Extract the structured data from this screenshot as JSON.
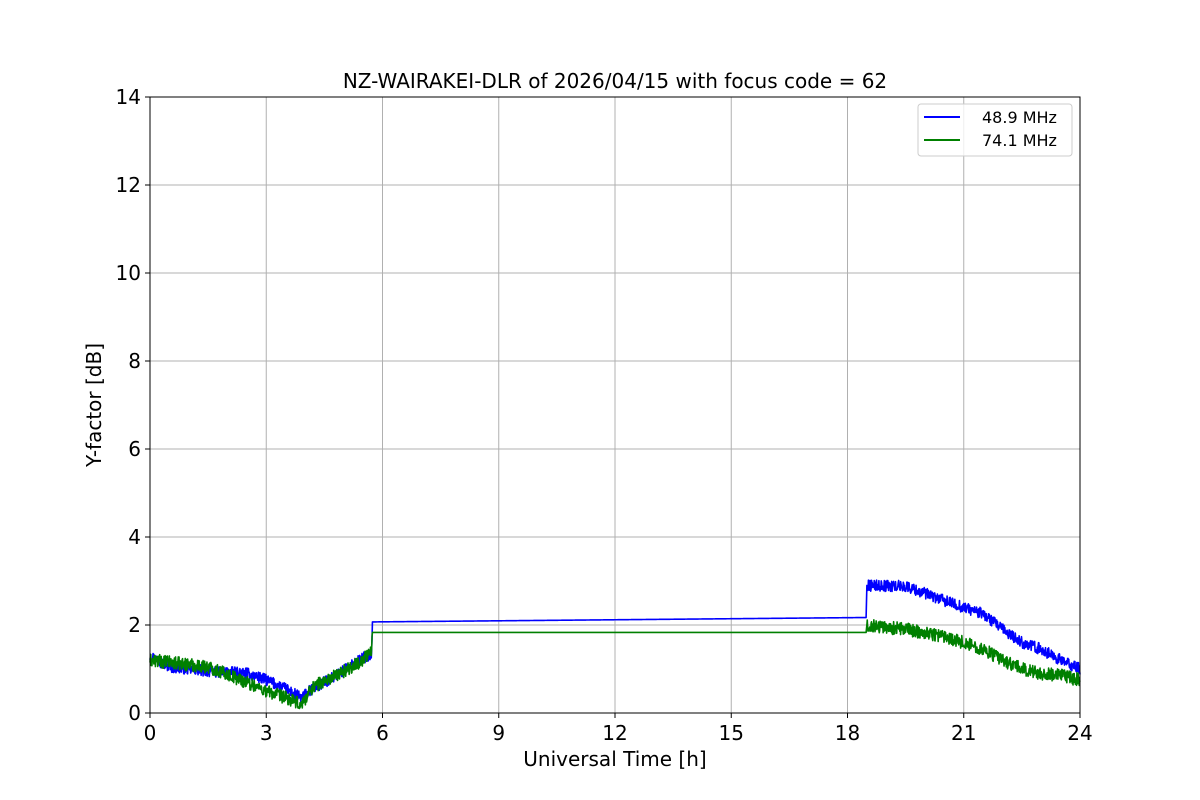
{
  "chart_data": {
    "type": "line",
    "title": "NZ-WAIRAKEI-DLR of 2026/04/15 with focus code = 62",
    "xlabel": "Universal Time [h]",
    "ylabel": "Y-factor [dB]",
    "xlim": [
      0,
      24
    ],
    "ylim": [
      0,
      14
    ],
    "xticks": [
      0,
      3,
      6,
      9,
      12,
      15,
      18,
      21,
      24
    ],
    "yticks": [
      0,
      2,
      4,
      6,
      8,
      10,
      12,
      14
    ],
    "xtick_labels": [
      "0",
      "3",
      "6",
      "9",
      "12",
      "15",
      "18",
      "21",
      "24"
    ],
    "ytick_labels": [
      "0",
      "2",
      "4",
      "6",
      "8",
      "10",
      "12",
      "14"
    ],
    "grid": true,
    "legend_position": "top-right",
    "series": [
      {
        "name": "48.9 MHz",
        "color": "#0000ff",
        "noise": 0.13,
        "points": [
          [
            0,
            1.3
          ],
          [
            0.5,
            1.05
          ],
          [
            1.5,
            0.95
          ],
          [
            2.5,
            0.9
          ],
          [
            3.0,
            0.75
          ],
          [
            3.5,
            0.55
          ],
          [
            3.9,
            0.35
          ],
          [
            4.2,
            0.55
          ],
          [
            4.8,
            0.85
          ],
          [
            5.4,
            1.2
          ],
          [
            5.72,
            1.35
          ],
          [
            5.74,
            2.07
          ],
          [
            18.48,
            2.17
          ],
          [
            18.5,
            2.9
          ],
          [
            19.5,
            2.88
          ],
          [
            20.5,
            2.55
          ],
          [
            21.5,
            2.25
          ],
          [
            22.0,
            1.9
          ],
          [
            22.5,
            1.6
          ],
          [
            23.0,
            1.45
          ],
          [
            23.5,
            1.2
          ],
          [
            24.0,
            1.0
          ]
        ]
      },
      {
        "name": "74.1 MHz",
        "color": "#008000",
        "noise": 0.15,
        "points": [
          [
            0,
            1.2
          ],
          [
            0.5,
            1.15
          ],
          [
            1.5,
            1.05
          ],
          [
            2.5,
            0.7
          ],
          [
            3.0,
            0.5
          ],
          [
            3.5,
            0.35
          ],
          [
            3.9,
            0.18
          ],
          [
            4.2,
            0.6
          ],
          [
            4.8,
            0.85
          ],
          [
            5.4,
            1.15
          ],
          [
            5.72,
            1.4
          ],
          [
            5.74,
            1.83
          ],
          [
            18.48,
            1.83
          ],
          [
            18.5,
            2.0
          ],
          [
            19.5,
            1.9
          ],
          [
            20.5,
            1.75
          ],
          [
            21.5,
            1.45
          ],
          [
            22.0,
            1.2
          ],
          [
            22.5,
            1.0
          ],
          [
            23.0,
            0.9
          ],
          [
            23.5,
            0.85
          ],
          [
            24.0,
            0.75
          ]
        ]
      }
    ]
  }
}
